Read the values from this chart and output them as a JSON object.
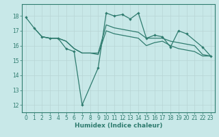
{
  "color": "#2E7B6E",
  "bg_color": "#C8E8E8",
  "grid_color": "#B8D4D4",
  "xlabel": "Humidex (Indice chaleur)",
  "ylim": [
    11.5,
    18.8
  ],
  "xlim": [
    -0.5,
    23.5
  ],
  "yticks": [
    12,
    13,
    14,
    15,
    16,
    17,
    18
  ],
  "xticks": [
    0,
    1,
    2,
    3,
    4,
    5,
    6,
    7,
    8,
    9,
    10,
    11,
    12,
    13,
    14,
    15,
    16,
    17,
    18,
    19,
    20,
    21,
    22,
    23
  ],
  "line_main_x": [
    0,
    1,
    2,
    3,
    4,
    5,
    6,
    7,
    9,
    10,
    11,
    12,
    13,
    14,
    15,
    16,
    17,
    18,
    19,
    20,
    22,
    23
  ],
  "line_main_y": [
    17.9,
    17.2,
    16.6,
    16.5,
    16.5,
    15.8,
    15.6,
    12.0,
    14.5,
    18.2,
    18.0,
    18.1,
    17.8,
    18.2,
    16.5,
    16.7,
    16.6,
    15.9,
    17.0,
    16.8,
    15.9,
    15.3
  ],
  "line_upper_x": [
    1,
    2,
    3,
    4,
    5,
    6,
    7,
    8,
    9,
    10,
    11,
    12,
    13,
    14,
    15,
    16,
    17,
    18,
    19,
    20,
    21,
    22,
    23
  ],
  "line_upper_y": [
    17.2,
    16.6,
    16.5,
    16.5,
    16.3,
    15.8,
    15.5,
    15.5,
    15.5,
    17.4,
    17.2,
    17.1,
    17.0,
    16.9,
    16.5,
    16.5,
    16.5,
    16.3,
    16.2,
    16.1,
    16.0,
    15.4,
    15.3
  ],
  "line_lower_x": [
    2,
    3,
    4,
    5,
    6,
    7,
    8,
    9,
    10,
    11,
    12,
    13,
    14,
    15,
    16,
    17,
    18,
    19,
    20,
    21,
    22,
    23
  ],
  "line_lower_y": [
    16.6,
    16.5,
    16.5,
    16.3,
    15.8,
    15.5,
    15.5,
    15.4,
    17.0,
    16.8,
    16.7,
    16.6,
    16.5,
    16.0,
    16.2,
    16.3,
    16.0,
    15.8,
    15.7,
    15.6,
    15.3,
    15.3
  ]
}
